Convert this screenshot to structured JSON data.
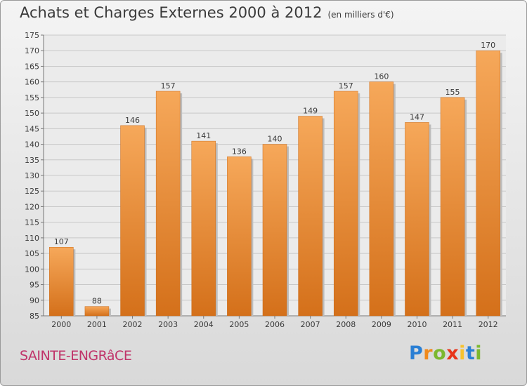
{
  "title": "Achats et Charges Externes 2000 à 2012",
  "unit": "(en milliers d'€)",
  "commune": "SAINTE-ENGRâCE",
  "logo": {
    "letters": [
      "P",
      "r",
      "o",
      "x",
      "i",
      "t",
      "i"
    ],
    "colors": [
      "#2a7fd4",
      "#f08a1c",
      "#7cb82f",
      "#e8351a",
      "#f6c22e",
      "#2a7fd4",
      "#7cb82f"
    ]
  },
  "colors": {
    "bar": "#e8892e",
    "bar_light": "#f6a85a",
    "bar_dark": "#d4701a",
    "text": "#3a3a3a",
    "commune": "#c0346a"
  },
  "chart_data": {
    "type": "bar",
    "categories": [
      "2000",
      "2001",
      "2002",
      "2003",
      "2004",
      "2005",
      "2006",
      "2007",
      "2008",
      "2009",
      "2010",
      "2011",
      "2012"
    ],
    "values": [
      107,
      88,
      146,
      157,
      141,
      136,
      140,
      149,
      157,
      160,
      147,
      155,
      170
    ],
    "ylim": [
      85,
      175
    ],
    "yticks": [
      85,
      90,
      95,
      100,
      105,
      110,
      115,
      120,
      125,
      130,
      135,
      140,
      145,
      150,
      155,
      160,
      165,
      170,
      175
    ],
    "grid": true
  }
}
